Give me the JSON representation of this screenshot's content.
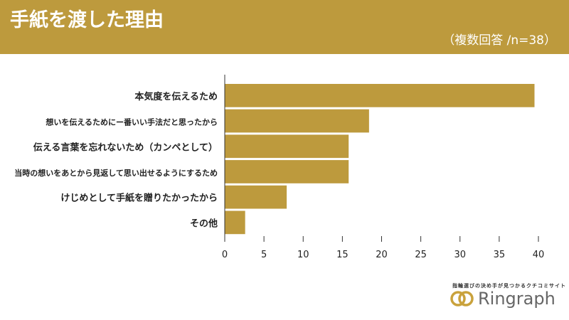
{
  "header": {
    "title": "手紙を渡した理由",
    "subtitle": "（複数回答 /n=38）"
  },
  "colors": {
    "header": "#bd9a3d",
    "bar": "#bd9a3d",
    "logo_accent": "#c9a23c"
  },
  "logo": {
    "tagline": "指輪選びの決め手が見つかるクチコミサイト",
    "name": "Ringraph"
  },
  "chart_data": {
    "type": "bar",
    "orientation": "horizontal",
    "categories": [
      "本気度を伝えるため",
      "想いを伝えるためにー番いい手法だと思ったから",
      "伝える言葉を忘れないため（カンペとして）",
      "当時の想いをあとから見返して思い出せるようにするため",
      "けじめとして手紙を贈りたかったから",
      "その他"
    ],
    "values": [
      39.5,
      18.4,
      15.8,
      15.8,
      7.9,
      2.6
    ],
    "xlim": [
      0,
      40
    ],
    "xticks": [
      "0",
      "5",
      "10",
      "15",
      "20",
      "25",
      "30",
      "35",
      "40"
    ],
    "grid": false
  }
}
